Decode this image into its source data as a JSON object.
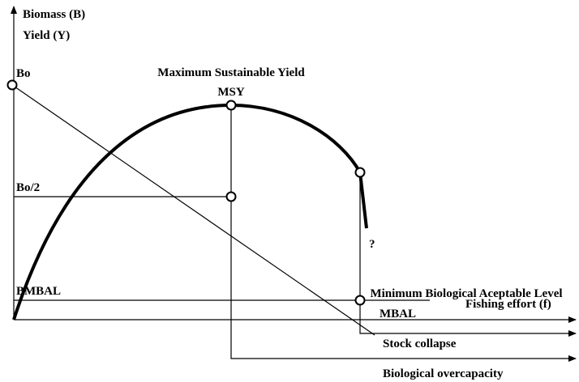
{
  "labels": {
    "y_axis_1": "Biomass (B)",
    "y_axis_2": "Yield (Y)",
    "x_axis": "Fishing effort (f)",
    "bo": "Bo",
    "bo_half": "Bo/2",
    "bmbal": "BMBAL",
    "msy_title": "Maximum Sustainable Yield",
    "msy": "MSY",
    "mbal_title": "Minimum Biological Aceptable Level",
    "mbal": "MBAL",
    "question": "?",
    "stock_collapse": "Stock collapse",
    "overcapacity": "Biological overcapacity"
  }
}
